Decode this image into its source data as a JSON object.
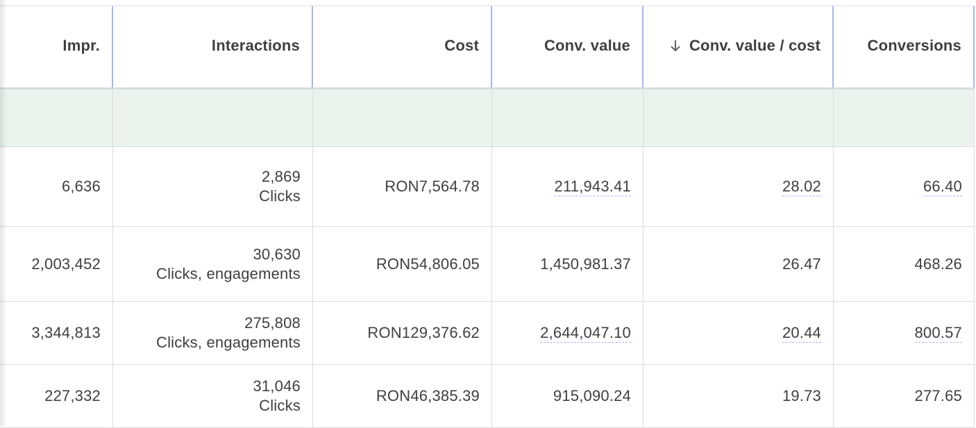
{
  "columns": [
    {
      "label": "Impr."
    },
    {
      "label": "Interactions"
    },
    {
      "label": "Cost"
    },
    {
      "label": "Conv. value"
    },
    {
      "label": "Conv. value / cost",
      "sorted": "descending",
      "sort_icon": "arrow-down-icon"
    },
    {
      "label": "Conversions"
    }
  ],
  "rows": [
    {
      "impr": "6,636",
      "interactions": "2,869",
      "interaction_types": "Clicks",
      "cost": "RON7,564.78",
      "conv_value": "211,943.41",
      "conv_value_cost": "28.02",
      "conversions": "66.40"
    },
    {
      "impr": "2,003,452",
      "interactions": "30,630",
      "interaction_types": "Clicks, engagements",
      "cost": "RON54,806.05",
      "conv_value": "1,450,981.37",
      "conv_value_cost": "26.47",
      "conversions": "468.26"
    },
    {
      "impr": "3,344,813",
      "interactions": "275,808",
      "interaction_types": "Clicks, engagements",
      "cost": "RON129,376.62",
      "conv_value": "2,644,047.10",
      "conv_value_cost": "20.44",
      "conversions": "800.57"
    },
    {
      "impr": "227,332",
      "interactions": "31,046",
      "interaction_types": "Clicks",
      "cost": "RON46,385.39",
      "conv_value": "915,090.24",
      "conv_value_cost": "19.73",
      "conversions": "277.65"
    }
  ],
  "colors": {
    "summary_row_bg": "#eaf4ec",
    "header_divider": "#aab4e8",
    "text": "#3c4043",
    "dotted_underline": "#c5a8e8"
  }
}
